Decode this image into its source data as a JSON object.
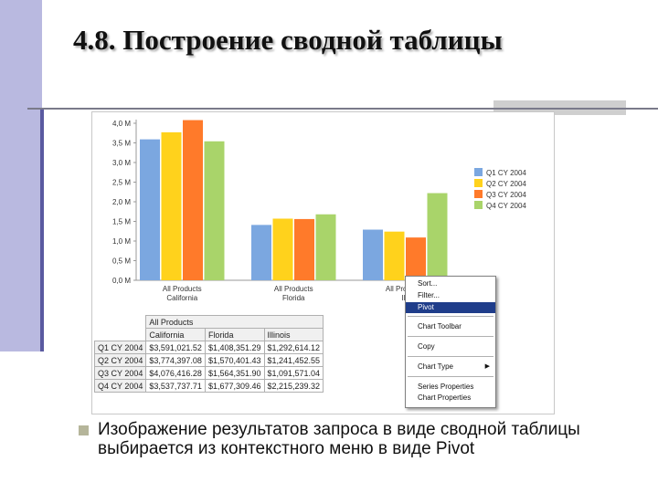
{
  "slide": {
    "title": "4.8. Построение сводной таблицы",
    "bullet": "Изображение результатов запроса в виде сводной таблицы выбирается из контекстного меню в виде Pivot"
  },
  "colors": {
    "q1": "#7ba7e0",
    "q2": "#ffd21c",
    "q3": "#ff7a2a",
    "q4": "#a9d46a",
    "accent": "#1f3d8a"
  },
  "chart_data": {
    "type": "bar",
    "categories": [
      "All Products\nCalifornia",
      "All Products\nFlorida",
      "All Products\nIllinois"
    ],
    "category_lines": [
      [
        "All Products",
        "California"
      ],
      [
        "All Products",
        "Florida"
      ],
      [
        "All Products",
        "Illi"
      ]
    ],
    "series": [
      {
        "name": "Q1 CY 2004",
        "values": [
          3.59,
          1.41,
          1.29
        ]
      },
      {
        "name": "Q2 CY 2004",
        "values": [
          3.77,
          1.57,
          1.24
        ]
      },
      {
        "name": "Q3 CY 2004",
        "values": [
          4.08,
          1.56,
          1.09
        ]
      },
      {
        "name": "Q4 CY 2004",
        "values": [
          3.54,
          1.68,
          2.22
        ]
      }
    ],
    "yticks": [
      "0,0 M",
      "0,5 M",
      "1,0 M",
      "1,5 M",
      "2,0 M",
      "2,5 M",
      "3,0 M",
      "3,5 M",
      "4,0 M"
    ],
    "ylim": [
      0,
      4
    ],
    "legend_position": "right"
  },
  "pivot": {
    "col_group": "All Products",
    "columns": [
      "California",
      "Florida",
      "Illinois"
    ],
    "rows": [
      {
        "label": "Q1 CY 2004",
        "values": [
          "$3,591,021.52",
          "$1,408,351.29",
          "$1,292,614.12"
        ]
      },
      {
        "label": "Q2 CY 2004",
        "values": [
          "$3,774,397.08",
          "$1,570,401.43",
          "$1,241,452.55"
        ]
      },
      {
        "label": "Q3 CY 2004",
        "values": [
          "$4,076,416.28",
          "$1,564,351.90",
          "$1,091,571.04"
        ]
      },
      {
        "label": "Q4 CY 2004",
        "values": [
          "$3,537,737.71",
          "$1,677,309.46",
          "$2,215,239.32"
        ]
      }
    ]
  },
  "context_menu": {
    "items": [
      "Sort...",
      "Filter...",
      "Pivot",
      "Chart Toolbar",
      "Copy",
      "Chart Type",
      "Series Properties",
      "Chart Properties"
    ],
    "selected": "Pivot"
  }
}
